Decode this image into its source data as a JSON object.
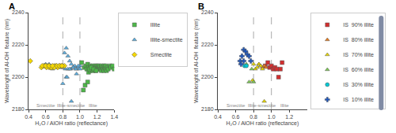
{
  "chart_data": [
    {
      "type": "scatter",
      "title": "A",
      "x_label": "H₂O / AlOH ratio (reflectance)",
      "y_label": "Wavelenght of Al-OH  feature (nm)",
      "xlim": [
        0.4,
        1.4
      ],
      "ylim": [
        2180,
        2240
      ],
      "xticks": [
        0.4,
        0.6,
        0.8,
        {
          "value": 1.0,
          "label": "1.0"
        },
        1.2,
        1.4
      ],
      "yticks": [
        2180,
        2200,
        2220,
        2240
      ],
      "grid": false,
      "legend": "right",
      "vlines": [
        0.8,
        1.0
      ],
      "annotations": [
        {
          "x": 0.6,
          "text": "Smectite"
        },
        {
          "x": 0.9,
          "text": "Illite-smectite"
        },
        {
          "x": 1.15,
          "text": "Illite"
        }
      ],
      "series": [
        {
          "name": "Illite",
          "color": "#4db848",
          "marker": "square",
          "x": [
            1.02,
            1.05,
            1.07,
            1.08,
            1.09,
            1.1,
            1.1,
            1.12,
            1.12,
            1.13,
            1.14,
            1.15,
            1.15,
            1.16,
            1.17,
            1.18,
            1.18,
            1.19,
            1.2,
            1.2,
            1.21,
            1.22,
            1.22,
            1.23,
            1.24,
            1.25,
            1.25,
            1.26,
            1.27,
            1.28,
            1.28,
            1.29,
            1.3,
            1.3,
            1.31,
            1.32,
            1.33,
            1.35,
            1.36,
            1.38,
            1.4,
            1.04,
            1.06,
            1.09,
            1.11,
            1.13,
            1.16,
            1.19
          ],
          "values": [
            2209,
            2206,
            2207,
            2205,
            2208,
            2206,
            2203,
            2207,
            2204,
            2206,
            2205,
            2207,
            2204,
            2206,
            2205,
            2207,
            2204,
            2206,
            2207,
            2205,
            2206,
            2207,
            2205,
            2206,
            2205,
            2207,
            2204,
            2206,
            2205,
            2207,
            2204,
            2206,
            2207,
            2205,
            2204,
            2206,
            2205,
            2207,
            2206,
            2207,
            2205,
            2192,
            2195,
            2197,
            2205,
            2206,
            2205,
            2204
          ]
        },
        {
          "name": "Illite-smectite",
          "color": "#5baee0",
          "marker": "triangle-up",
          "x": [
            0.6,
            0.62,
            0.64,
            0.66,
            0.68,
            0.7,
            0.72,
            0.74,
            0.76,
            0.78,
            0.8,
            0.82,
            0.84,
            0.86,
            0.88,
            0.9,
            0.92,
            0.94,
            0.96,
            0.98,
            1.0,
            0.62,
            0.65,
            0.68,
            0.71,
            0.74,
            0.77,
            0.8,
            0.83,
            0.86,
            0.89,
            0.92,
            0.95,
            0.98,
            0.72,
            0.76,
            0.8,
            0.84,
            0.88,
            0.92,
            0.96,
            1.0,
            0.8,
            0.85,
            0.9
          ],
          "values": [
            2208,
            2207,
            2208,
            2207,
            2207,
            2206,
            2207,
            2206,
            2207,
            2206,
            2206,
            2215,
            2218,
            2213,
            2210,
            2208,
            2206,
            2207,
            2205,
            2206,
            2207,
            2207,
            2206,
            2205,
            2207,
            2206,
            2207,
            2206,
            2205,
            2205,
            2205,
            2206,
            2205,
            2207,
            2207,
            2207,
            2206,
            2200,
            2205,
            2206,
            2202,
            2205,
            2196,
            2200,
            2185
          ]
        },
        {
          "name": "Smectite",
          "color": "#f5d800",
          "marker": "diamond",
          "x": [
            0.42,
            0.55,
            0.58,
            0.6,
            0.62,
            0.64,
            0.66,
            0.68,
            0.7,
            0.72,
            0.74,
            0.76,
            0.78,
            0.8,
            0.82,
            0.58,
            0.61,
            0.64,
            0.67,
            0.7,
            0.73,
            0.76,
            0.79,
            0.56,
            0.6,
            0.64,
            0.68
          ],
          "values": [
            2210,
            2206,
            2207,
            2207,
            2207,
            2206,
            2206,
            2206,
            2207,
            2207,
            2206,
            2207,
            2207,
            2207,
            2207,
            2207,
            2206,
            2207,
            2206,
            2206,
            2207,
            2207,
            2207,
            2207,
            2207,
            2207,
            2207
          ]
        }
      ]
    },
    {
      "type": "scatter",
      "title": "B",
      "x_label": "H₂O / AlOH ratio (reflectance)",
      "y_label": "Wavelenght of Al-OH  feature (nm)",
      "xlim": [
        0.4,
        1.4
      ],
      "ylim": [
        2180,
        2240
      ],
      "xticks": [
        0.4,
        0.6,
        0.8,
        {
          "value": 1.0,
          "label": "1.0"
        },
        1.2
      ],
      "yticks": [
        2180,
        2200,
        2220,
        2240
      ],
      "grid": false,
      "legend": "right",
      "vlines": [
        0.8,
        1.0
      ],
      "annotations": [
        {
          "x": 0.6,
          "text": "Smectite"
        },
        {
          "x": 0.9,
          "text": "Illite-smectite"
        },
        {
          "x": 1.15,
          "text": "Illite"
        }
      ],
      "series": [
        {
          "name": "IS  90% illite",
          "color": "#d32f2f",
          "marker": "square",
          "x": [
            0.93,
            0.96,
            0.98,
            1.0,
            1.02,
            1.04,
            1.06,
            1.08,
            1.1,
            1.12
          ],
          "values": [
            2207,
            2209,
            2206,
            2207,
            2205,
            2206,
            2205,
            2200,
            2205,
            2209
          ]
        },
        {
          "name": "IS  80% illite",
          "color": "#e87c1e",
          "marker": "triangle-up",
          "x": [
            0.86,
            0.88,
            0.9,
            0.92,
            0.94
          ],
          "values": [
            2208,
            2207,
            2206,
            2207,
            2206
          ]
        },
        {
          "name": "IS  70% illite",
          "color": "#e8d800",
          "marker": "triangle-up",
          "x": [
            0.8,
            0.82,
            0.84,
            0.86,
            0.88,
            0.9,
            0.92,
            0.79
          ],
          "values": [
            2208,
            2205,
            2206,
            2208,
            2207,
            2205,
            2185,
            2198
          ]
        },
        {
          "name": "IS  60% illite",
          "color": "#7dc855",
          "marker": "triangle-up",
          "x": [
            0.72,
            0.75,
            0.78,
            0.8
          ],
          "values": [
            2208,
            2197,
            2205,
            2197
          ]
        },
        {
          "name": "IS  30% illite",
          "color": "#00c8d4",
          "marker": "circle",
          "x": [
            0.7,
            0.72
          ],
          "values": [
            2207,
            2207
          ]
        },
        {
          "name": "IS  10% illite",
          "color": "#1a55c0",
          "marker": "cross",
          "x": [
            0.65,
            0.67,
            0.69,
            0.71,
            0.73,
            0.75,
            0.77,
            0.66,
            0.69
          ],
          "values": [
            2210,
            2213,
            2217,
            2216,
            2214,
            2213,
            2210,
            2208,
            2210
          ]
        }
      ]
    }
  ]
}
